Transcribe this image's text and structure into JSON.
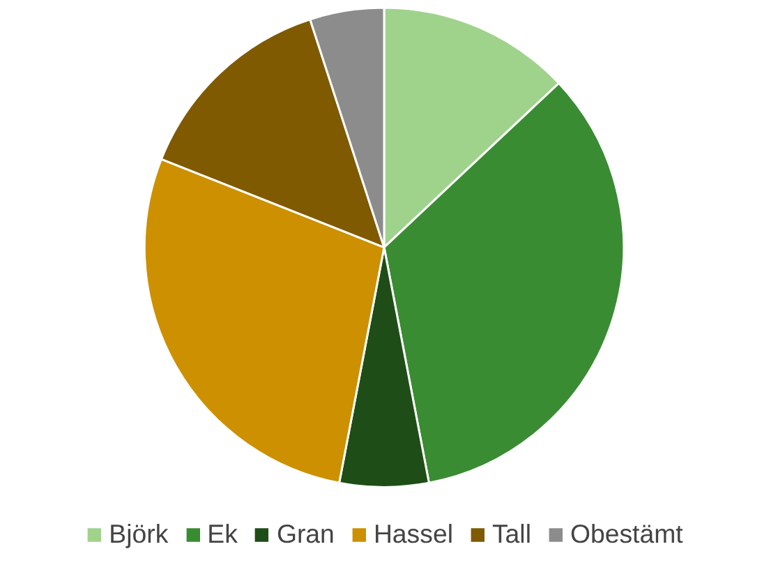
{
  "chart_data": {
    "type": "pie",
    "categories": [
      "Björk",
      "Ek",
      "Gran",
      "Hassel",
      "Tall",
      "Obestämt"
    ],
    "values": [
      13,
      34,
      6,
      28,
      14,
      5
    ],
    "colors": [
      "#9fd38c",
      "#3a8c32",
      "#1f4d17",
      "#cc9000",
      "#7f5a00",
      "#8c8c8c"
    ],
    "legend": "bottom"
  }
}
